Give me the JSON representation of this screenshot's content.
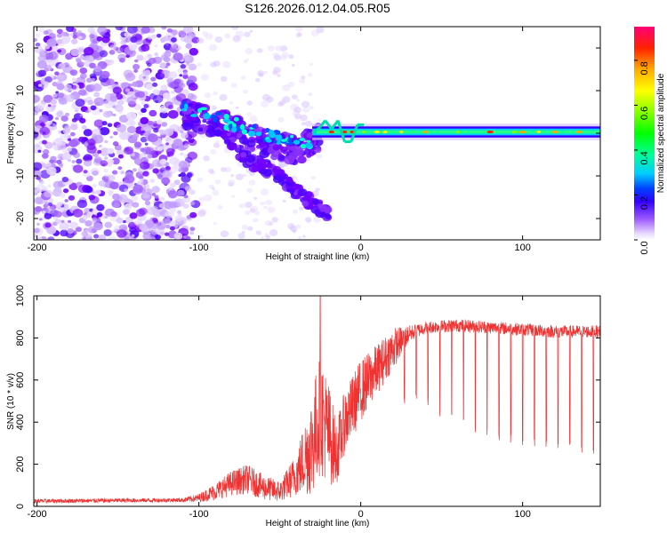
{
  "title": "S126.2026.012.04.05.R05",
  "chart_data": [
    {
      "type": "heatmap",
      "xlabel": "Height of straight line (km)",
      "ylabel": "Frequency (Hz)",
      "xlim": [
        -202,
        148
      ],
      "ylim": [
        -25,
        25
      ],
      "xticks": [
        -200,
        -100,
        0,
        100
      ],
      "yticks": [
        -20,
        -10,
        0,
        10,
        20
      ],
      "tick_labels_x": [
        "-200",
        "-100",
        "0",
        "100"
      ],
      "tick_labels_y": [
        "-20",
        "-10",
        "0",
        "10",
        "20"
      ],
      "colorbar": {
        "label": "Normalized spectral amplitude",
        "range": [
          0.0,
          0.95
        ],
        "ticks": [
          0.0,
          0.2,
          0.4,
          0.6,
          0.8
        ],
        "tick_labels": [
          "0.0",
          "0.2",
          "0.4",
          "0.6",
          "0.8"
        ]
      },
      "features": {
        "main_tone_frequency_hz": 0.3,
        "main_tone_start_km": -30,
        "branch_upper": {
          "x": [
            -110,
            -85,
            -60,
            -40,
            -25
          ],
          "freq": [
            5,
            2,
            -2,
            -4,
            -1
          ]
        },
        "branch_lower": {
          "x": [
            -90,
            -70,
            -50,
            -35,
            -20
          ],
          "freq": [
            2,
            -6,
            -10,
            -15,
            -19
          ]
        },
        "diffuse_region_km": [
          -202,
          -100
        ]
      }
    },
    {
      "type": "line",
      "xlabel": "Height of straight line (km)",
      "ylabel": "SNR (10 * v/v)",
      "xlim": [
        -202,
        148
      ],
      "ylim": [
        0,
        1000
      ],
      "xticks": [
        -200,
        -100,
        0,
        100
      ],
      "yticks": [
        0,
        200,
        400,
        600,
        800,
        1000
      ],
      "tick_labels_x": [
        "-200",
        "-100",
        "0",
        "100"
      ],
      "tick_labels_y": [
        "0",
        "200",
        "400",
        "600",
        "800",
        "1000"
      ],
      "color": "#ee3333",
      "envelope": {
        "x": [
          -202,
          -110,
          -100,
          -90,
          -80,
          -70,
          -60,
          -50,
          -40,
          -30,
          -25,
          -20,
          -15,
          -10,
          0,
          10,
          20,
          30,
          40,
          60,
          80,
          100,
          120,
          148
        ],
        "y_mean": [
          25,
          30,
          40,
          70,
          110,
          130,
          90,
          70,
          150,
          300,
          450,
          350,
          250,
          400,
          550,
          650,
          750,
          820,
          850,
          860,
          850,
          840,
          830,
          830
        ],
        "y_noise": [
          10,
          10,
          20,
          40,
          60,
          70,
          60,
          50,
          100,
          250,
          300,
          250,
          150,
          150,
          150,
          120,
          100,
          40,
          30,
          30,
          30,
          30,
          30,
          30
        ]
      },
      "peak": {
        "x": -25,
        "y": 1000
      },
      "dropouts": {
        "x_start": 20,
        "x_end": 148,
        "spacing_km": 7.3,
        "floor_y": [
          480,
          500,
          460,
          420,
          390,
          360,
          350,
          330,
          310,
          300,
          290,
          280,
          270,
          260,
          260,
          250,
          250,
          250
        ]
      }
    }
  ]
}
